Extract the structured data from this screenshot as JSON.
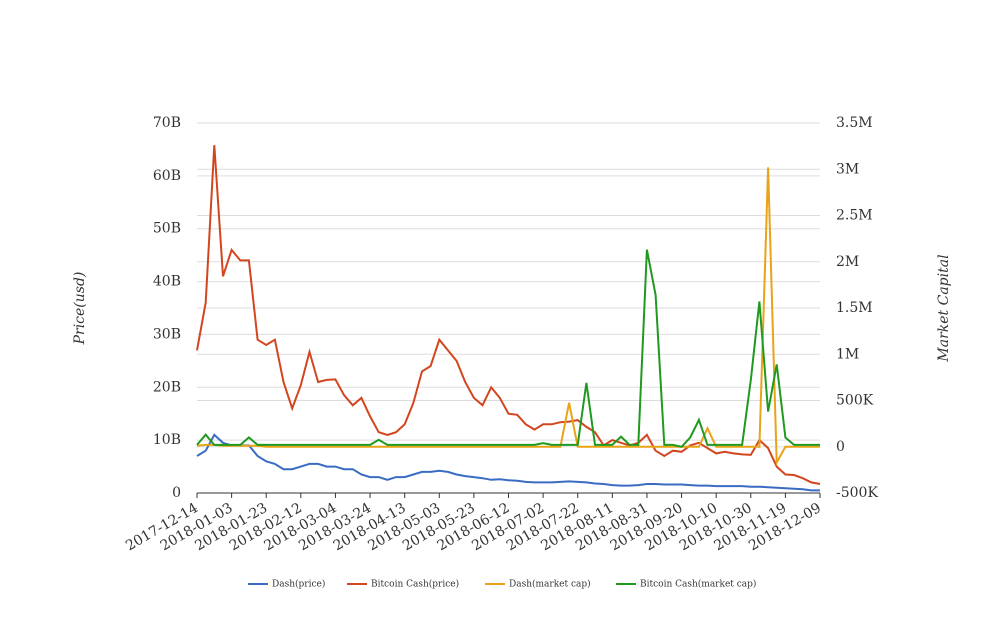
{
  "chart_data": {
    "type": "line",
    "x": [
      "2017-12-14",
      "2017-12-19",
      "2017-12-24",
      "2017-12-29",
      "2018-01-03",
      "2018-01-08",
      "2018-01-13",
      "2018-01-18",
      "2018-01-23",
      "2018-01-28",
      "2018-02-02",
      "2018-02-07",
      "2018-02-12",
      "2018-02-17",
      "2018-02-22",
      "2018-02-27",
      "2018-03-04",
      "2018-03-09",
      "2018-03-14",
      "2018-03-19",
      "2018-03-24",
      "2018-03-29",
      "2018-04-03",
      "2018-04-08",
      "2018-04-13",
      "2018-04-18",
      "2018-04-23",
      "2018-04-28",
      "2018-05-03",
      "2018-05-08",
      "2018-05-13",
      "2018-05-18",
      "2018-05-23",
      "2018-05-28",
      "2018-06-02",
      "2018-06-07",
      "2018-06-12",
      "2018-06-17",
      "2018-06-22",
      "2018-06-27",
      "2018-07-02",
      "2018-07-07",
      "2018-07-12",
      "2018-07-17",
      "2018-07-22",
      "2018-07-27",
      "2018-08-01",
      "2018-08-06",
      "2018-08-11",
      "2018-08-16",
      "2018-08-21",
      "2018-08-26",
      "2018-08-31",
      "2018-09-05",
      "2018-09-10",
      "2018-09-15",
      "2018-09-20",
      "2018-09-25",
      "2018-09-30",
      "2018-10-05",
      "2018-10-10",
      "2018-10-15",
      "2018-10-20",
      "2018-10-25",
      "2018-10-30",
      "2018-11-04",
      "2018-11-09",
      "2018-11-14",
      "2018-11-19",
      "2018-11-24",
      "2018-11-29",
      "2018-12-04",
      "2018-12-09"
    ],
    "xlim": [
      "2017-12-14",
      "2018-12-09"
    ],
    "xticks": [
      "2017-12-14",
      "2018-01-03",
      "2018-01-23",
      "2018-02-12",
      "2018-03-04",
      "2018-03-24",
      "2018-04-13",
      "2018-05-03",
      "2018-05-23",
      "2018-06-12",
      "2018-07-02",
      "2018-07-22",
      "2018-08-11",
      "2018-08-31",
      "2018-09-20",
      "2018-10-10",
      "2018-10-30",
      "2018-11-19",
      "2018-12-09"
    ],
    "y_label": "Price(usd)",
    "y2_label": "Market Capital",
    "ylim": [
      0,
      70000000000.0
    ],
    "yticks": [
      0,
      {
        "value": 10000000000.0,
        "label": "10B"
      },
      {
        "value": 20000000000.0,
        "label": "20B"
      },
      {
        "value": 30000000000.0,
        "label": "30B"
      },
      {
        "value": 40000000000.0,
        "label": "40B"
      },
      {
        "value": 50000000000.0,
        "label": "50B"
      },
      {
        "value": 60000000000.0,
        "label": "60B"
      },
      {
        "value": 70000000000.0,
        "label": "70B"
      }
    ],
    "y2lim": [
      -500000,
      3500000
    ],
    "y2ticks": [
      {
        "value": -500000,
        "label": "-500K"
      },
      0,
      {
        "value": 500000,
        "label": "500K"
      },
      {
        "value": 1000000,
        "label": "1M"
      },
      {
        "value": 1500000,
        "label": "1.5M"
      },
      {
        "value": 2000000,
        "label": "2M"
      },
      {
        "value": 2500000,
        "label": "2.5M"
      },
      {
        "value": 3000000,
        "label": "3M"
      },
      {
        "value": 3500000,
        "label": "3.5M"
      }
    ],
    "grid": true,
    "legend": "bottom",
    "series": [
      {
        "name": "Dash(price)",
        "color": "#3a6cc4",
        "values": [
          7000000000.0,
          8000000000.0,
          11000000000.0,
          9500000000.0,
          9000000000.0,
          9000000000.0,
          9000000000.0,
          7000000000.0,
          6000000000.0,
          5500000000.0,
          4500000000.0,
          4500000000.0,
          5000000000.0,
          5500000000.0,
          5500000000.0,
          5000000000.0,
          5000000000.0,
          4500000000.0,
          4500000000.0,
          3500000000.0,
          3000000000.0,
          3000000000.0,
          2500000000.0,
          3000000000.0,
          3000000000.0,
          3500000000.0,
          4000000000.0,
          4000000000.0,
          4200000000.0,
          4000000000.0,
          3500000000.0,
          3200000000.0,
          3000000000.0,
          2800000000.0,
          2500000000.0,
          2600000000.0,
          2400000000.0,
          2300000000.0,
          2100000000.0,
          2000000000.0,
          2000000000.0,
          2000000000.0,
          2100000000.0,
          2200000000.0,
          2100000000.0,
          2000000000.0,
          1800000000.0,
          1700000000.0,
          1500000000.0,
          1400000000.0,
          1400000000.0,
          1500000000.0,
          1700000000.0,
          1700000000.0,
          1600000000.0,
          1600000000.0,
          1600000000.0,
          1500000000.0,
          1400000000.0,
          1400000000.0,
          1300000000.0,
          1300000000.0,
          1300000000.0,
          1300000000.0,
          1200000000.0,
          1200000000.0,
          1100000000.0,
          1000000000.0,
          900000000.0,
          800000000.0,
          700000000.0,
          500000000.0,
          500000000.0
        ]
      },
      {
        "name": "Bitcoin Cash(price)",
        "color": "#d2451e",
        "values": [
          27000000000.0,
          36000000000.0,
          65800000000.0,
          41000000000.0,
          46000000000.0,
          44000000000.0,
          44000000000.0,
          29000000000.0,
          28000000000.0,
          29000000000.0,
          21000000000.0,
          16000000000.0,
          20400000000.0,
          26700000000.0,
          21000000000.0,
          21400000000.0,
          21500000000.0,
          18500000000.0,
          16600000000.0,
          18000000000.0,
          14500000000.0,
          11500000000.0,
          11000000000.0,
          11500000000.0,
          13000000000.0,
          17000000000.0,
          23000000000.0,
          24000000000.0,
          29000000000.0,
          27000000000.0,
          25000000000.0,
          21000000000.0,
          18000000000.0,
          16600000000.0,
          20000000000.0,
          18000000000.0,
          15000000000.0,
          14800000000.0,
          13000000000.0,
          12000000000.0,
          13000000000.0,
          13000000000.0,
          13400000000.0,
          13500000000.0,
          13800000000.0,
          12500000000.0,
          11500000000.0,
          9000000000.0,
          10000000000.0,
          9500000000.0,
          9000000000.0,
          9500000000.0,
          11000000000.0,
          8000000000.0,
          7000000000.0,
          8000000000.0,
          7800000000.0,
          9000000000.0,
          9500000000.0,
          8500000000.0,
          7500000000.0,
          7800000000.0,
          7500000000.0,
          7300000000.0,
          7200000000.0,
          10000000000.0,
          8500000000.0,
          5000000000.0,
          3500000000.0,
          3400000000.0,
          2800000000.0,
          2000000000.0,
          1700000000.0
        ]
      },
      {
        "name": "Dash(market cap)",
        "color": "#e8a317",
        "axis": "y2",
        "values": [
          10000,
          20000,
          20000,
          10000,
          10000,
          10000,
          10000,
          10000,
          0,
          0,
          0,
          0,
          0,
          0,
          0,
          0,
          0,
          0,
          0,
          0,
          0,
          0,
          0,
          0,
          0,
          0,
          0,
          0,
          0,
          0,
          0,
          0,
          0,
          0,
          0,
          0,
          0,
          0,
          0,
          0,
          0,
          0,
          0,
          475000,
          0,
          0,
          0,
          0,
          0,
          0,
          0,
          0,
          0,
          0,
          0,
          0,
          0,
          0,
          0,
          200000,
          0,
          0,
          0,
          0,
          0,
          0,
          3020000,
          -170000,
          0,
          0,
          0,
          0,
          0
        ]
      },
      {
        "name": "Bitcoin Cash(market cap)",
        "color": "#1f9a1f",
        "axis": "y2",
        "values": [
          20000,
          130000,
          20000,
          20000,
          20000,
          20000,
          100000,
          20000,
          20000,
          20000,
          20000,
          20000,
          20000,
          20000,
          20000,
          20000,
          20000,
          20000,
          20000,
          20000,
          20000,
          75000,
          20000,
          20000,
          20000,
          20000,
          20000,
          20000,
          20000,
          20000,
          20000,
          20000,
          20000,
          20000,
          20000,
          20000,
          20000,
          20000,
          20000,
          20000,
          40000,
          20000,
          20000,
          20000,
          20000,
          690000,
          20000,
          20000,
          20000,
          110000,
          20000,
          20000,
          2130000,
          1640000,
          20000,
          20000,
          0,
          100000,
          290000,
          20000,
          20000,
          20000,
          20000,
          20000,
          720000,
          1570000,
          380000,
          890000,
          100000,
          20000,
          20000,
          20000,
          20000
        ]
      }
    ]
  }
}
